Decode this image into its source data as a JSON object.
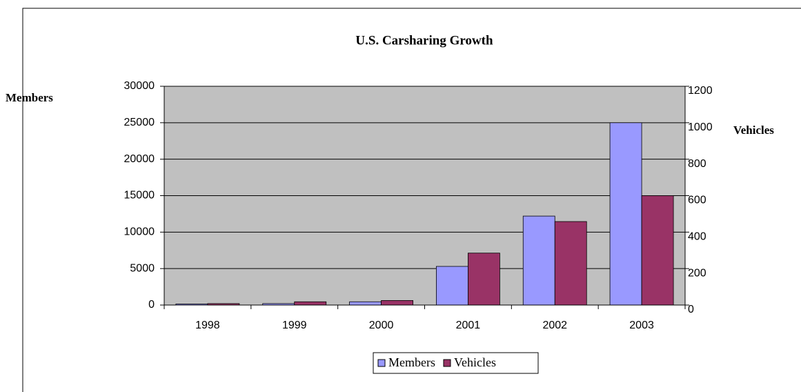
{
  "chart_data": {
    "type": "bar",
    "title": "U.S. Carsharing Growth",
    "y_label": "Members",
    "y2_label": "Vehicles",
    "categories": [
      "1998",
      "1999",
      "2000",
      "2001",
      "2002",
      "2003"
    ],
    "series": [
      {
        "name": "Members",
        "color": "#9999ff",
        "values": [
          150,
          200,
          450,
          5300,
          12200,
          25000
        ]
      },
      {
        "name": "Vehicles",
        "color": "#993366",
        "values": [
          8,
          18,
          25,
          285,
          458,
          600
        ],
        "axis": "y2"
      }
    ],
    "ylim": [
      0,
      30000
    ],
    "yticks": [
      0,
      5000,
      10000,
      15000,
      20000,
      25000,
      30000
    ],
    "y2lim": [
      0,
      1200
    ],
    "y2ticks": [
      0,
      200,
      400,
      600,
      800,
      1000,
      1200
    ],
    "grid": true,
    "legend": "bottom"
  }
}
